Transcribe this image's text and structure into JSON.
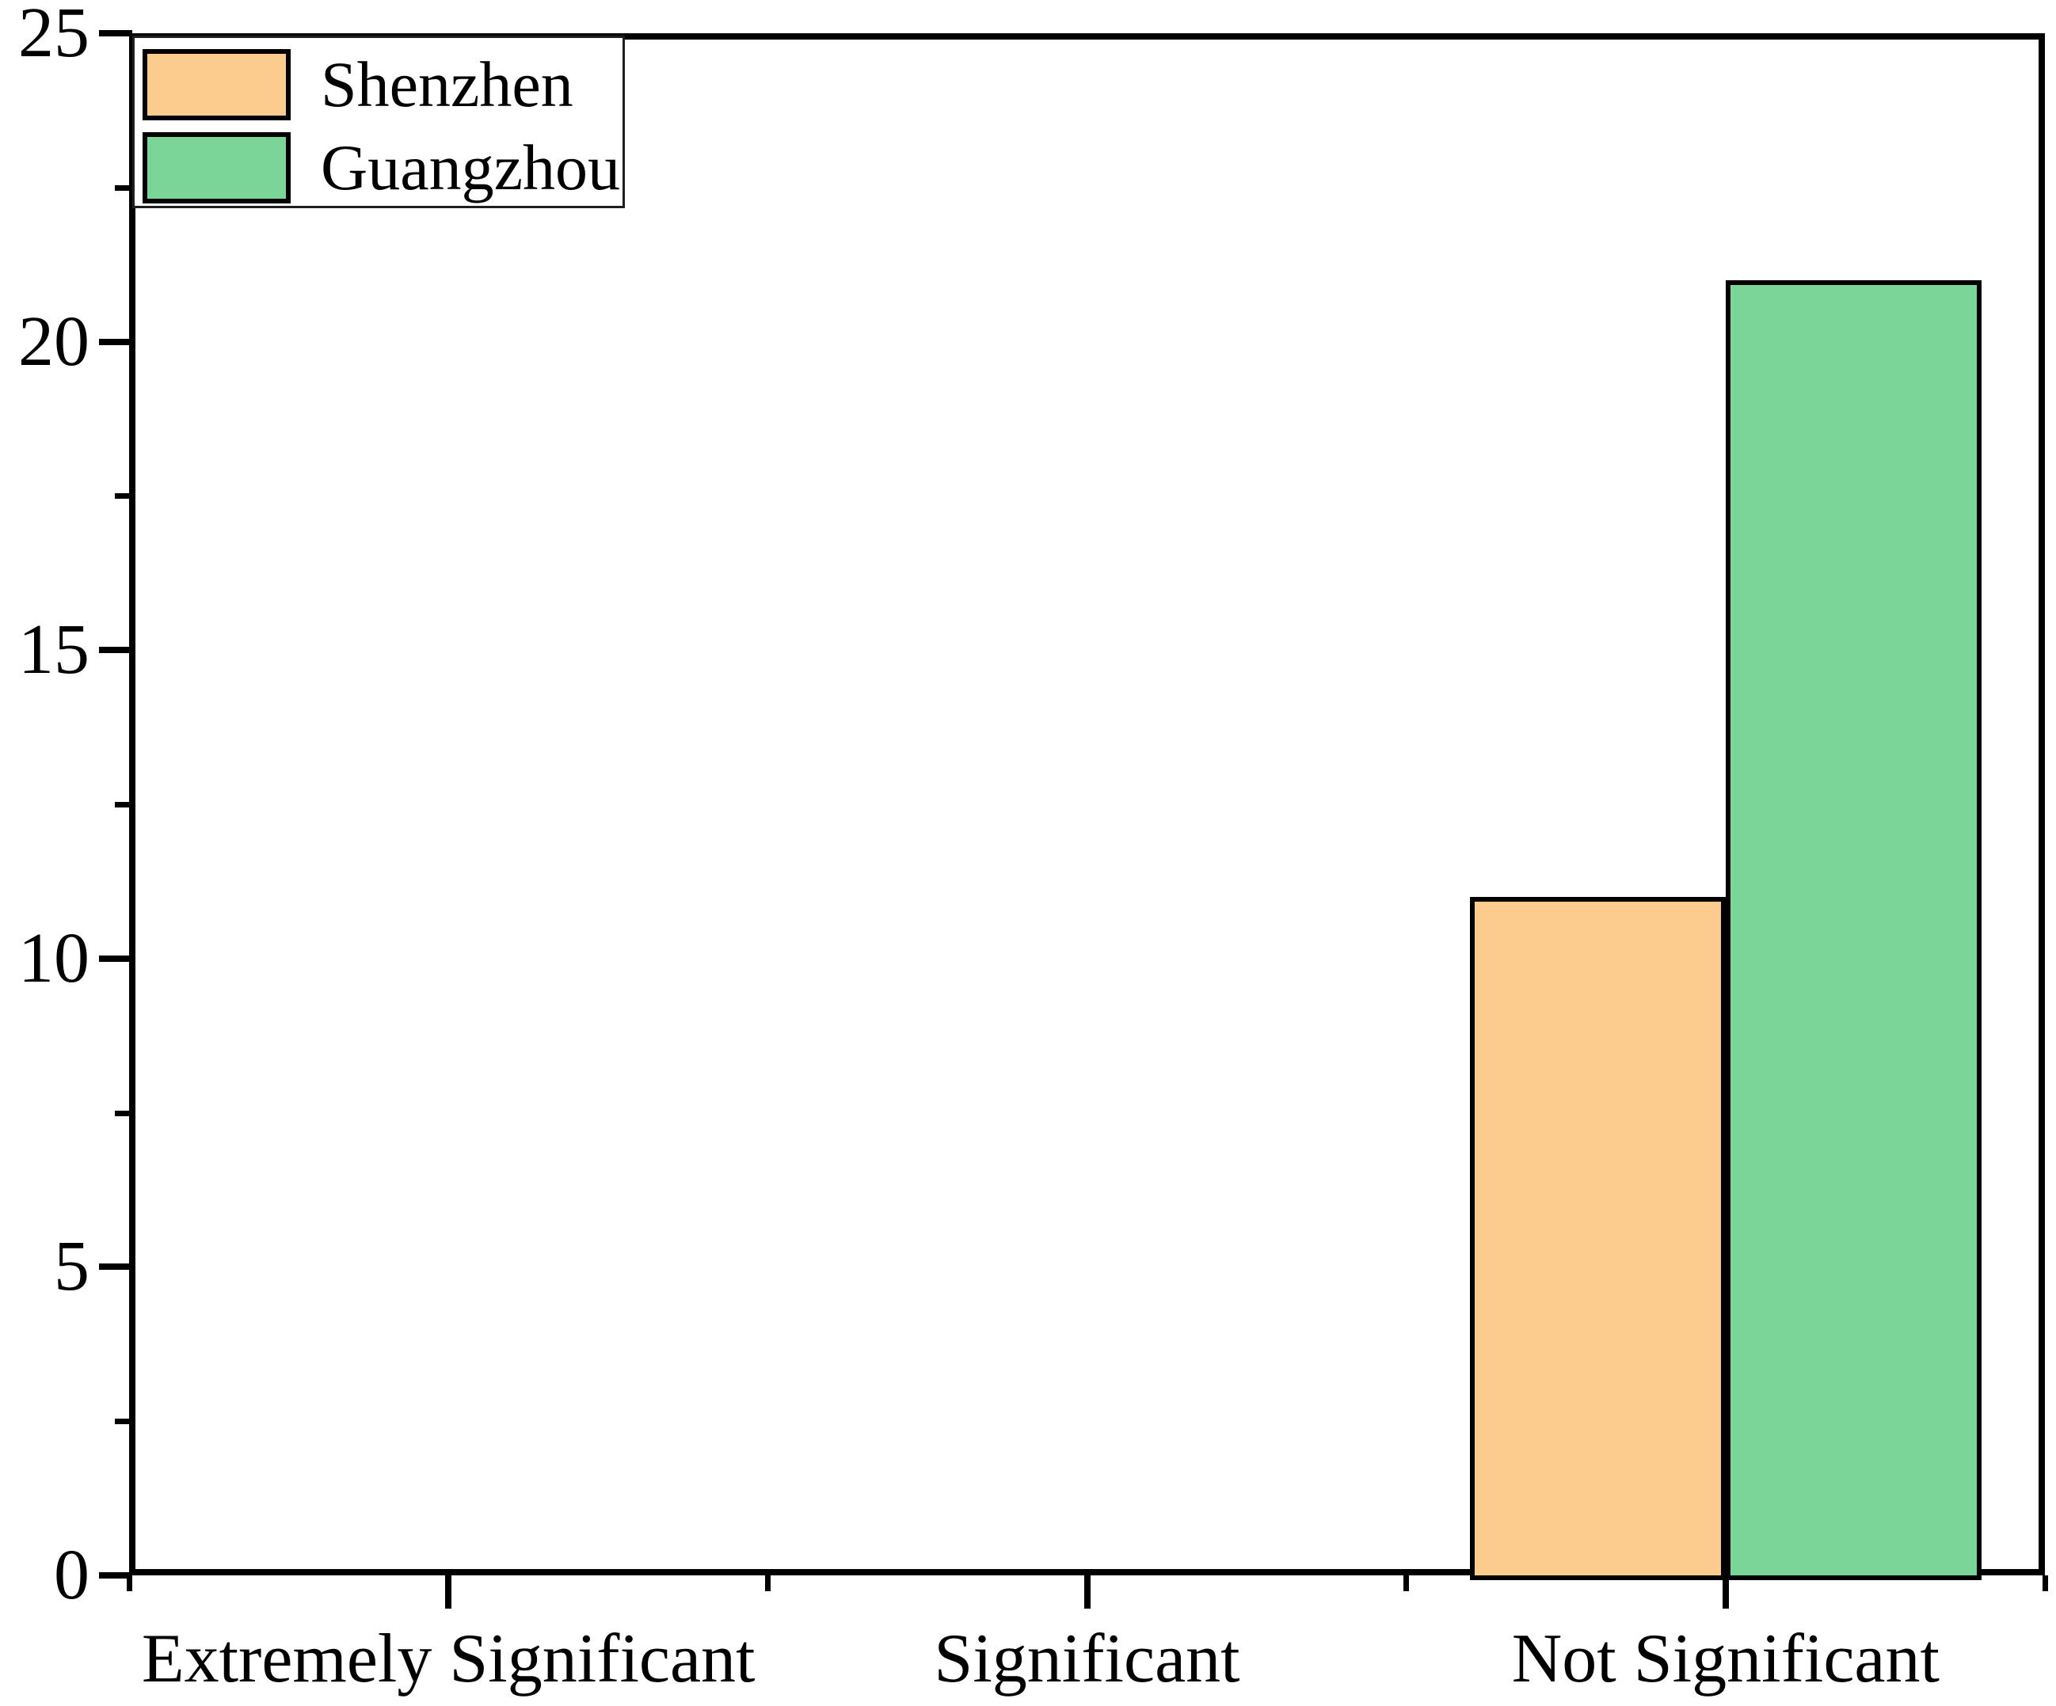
{
  "chart_data": {
    "type": "bar",
    "title": "",
    "xlabel": "",
    "ylabel": "",
    "categories": [
      "Extremely Significant",
      "Significant",
      "Not Significant"
    ],
    "series": [
      {
        "name": "Shenzhen",
        "color": "#FCCB8E",
        "border_color": "#000000",
        "values": [
          0,
          0,
          11
        ]
      },
      {
        "name": "Guangzhou",
        "color": "#7CD598",
        "border_color": "#000000",
        "values": [
          0,
          0,
          21
        ]
      }
    ],
    "ylim": [
      0,
      25
    ],
    "y_major_ticks": [
      0,
      5,
      10,
      15,
      20,
      25
    ],
    "y_tick_labels": [
      "0",
      "5",
      "10",
      "15",
      "20",
      "25"
    ],
    "y_minor_ticks": [
      2.5,
      7.5,
      12.5,
      17.5,
      22.5
    ],
    "grid": false,
    "legend_position": "top-left-inside",
    "axis_color": "#000000",
    "background_color": "#ffffff"
  },
  "legend": {
    "items": [
      {
        "label": "Shenzhen"
      },
      {
        "label": "Guangzhou"
      }
    ]
  }
}
